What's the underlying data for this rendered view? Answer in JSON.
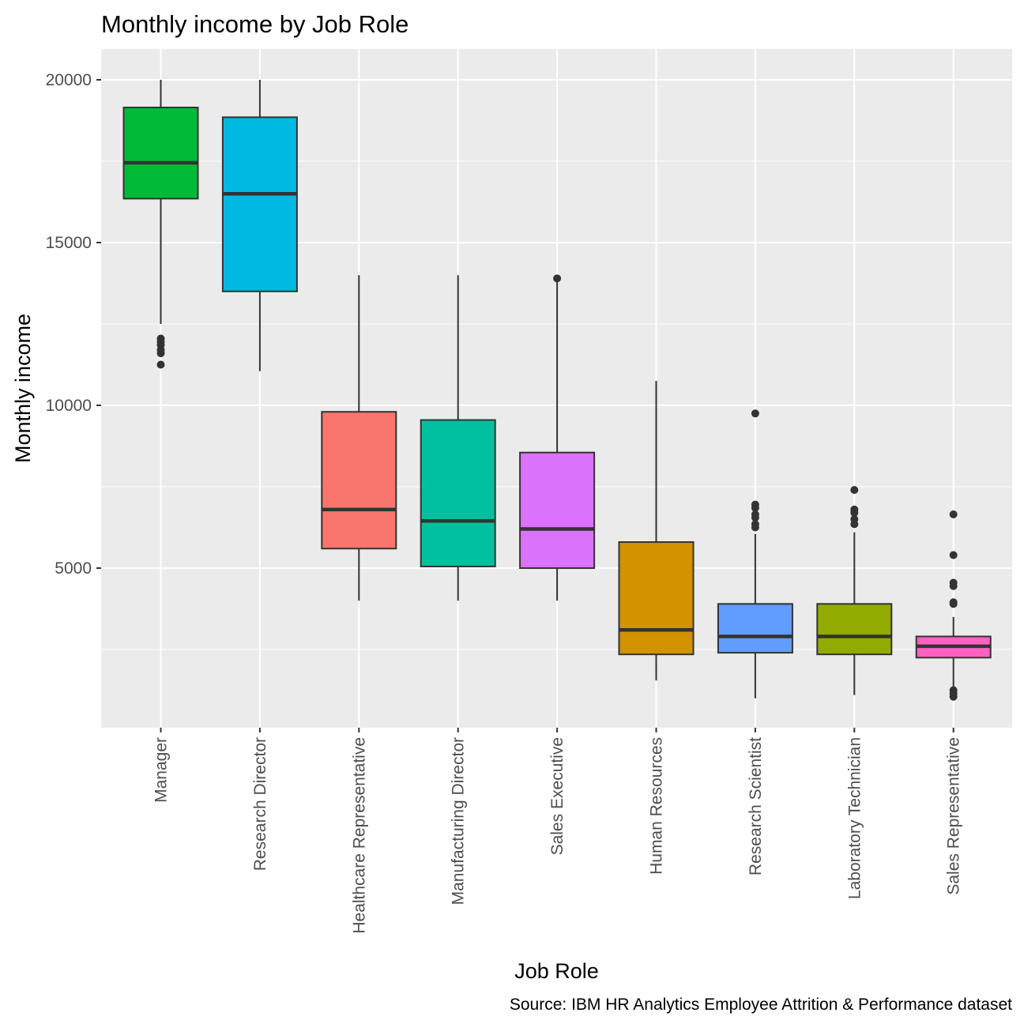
{
  "chart_data": {
    "type": "boxplot",
    "title": "Monthly income by Job Role",
    "xlabel": "Job Role",
    "ylabel": "Monthly income",
    "caption": "Source: IBM HR Analytics Employee Attrition & Performance dataset",
    "ylim": [
      0,
      21000
    ],
    "yticks": [
      5000,
      10000,
      15000,
      20000
    ],
    "grid": true,
    "legend": "none",
    "categories": [
      "Manager",
      "Research Director",
      "Healthcare Representative",
      "Manufacturing Director",
      "Sales Executive",
      "Human Resources",
      "Research Scientist",
      "Laboratory Technician",
      "Sales Representative"
    ],
    "boxes": [
      {
        "category": "Manager",
        "color": "#00BA38",
        "whisker_low": 12500,
        "q1": 16350,
        "median": 17450,
        "q3": 19150,
        "whisker_high": 20000,
        "outliers": [
          11250,
          11600,
          11700,
          11850,
          11950,
          12050
        ]
      },
      {
        "category": "Research Director",
        "color": "#00B9E3",
        "whisker_low": 11050,
        "q1": 13500,
        "median": 16500,
        "q3": 18850,
        "whisker_high": 20000,
        "outliers": []
      },
      {
        "category": "Healthcare Representative",
        "color": "#F8766D",
        "whisker_low": 4000,
        "q1": 5600,
        "median": 6800,
        "q3": 9800,
        "whisker_high": 14000,
        "outliers": []
      },
      {
        "category": "Manufacturing Director",
        "color": "#00C19F",
        "whisker_low": 4000,
        "q1": 5050,
        "median": 6450,
        "q3": 9550,
        "whisker_high": 14000,
        "outliers": []
      },
      {
        "category": "Sales Executive",
        "color": "#DB72FB",
        "whisker_low": 4000,
        "q1": 5000,
        "median": 6200,
        "q3": 8550,
        "whisker_high": 13900,
        "outliers": [
          13900
        ]
      },
      {
        "category": "Human Resources",
        "color": "#D39200",
        "whisker_low": 1550,
        "q1": 2350,
        "median": 3100,
        "q3": 5800,
        "whisker_high": 10750,
        "outliers": []
      },
      {
        "category": "Research Scientist",
        "color": "#619CFF",
        "whisker_low": 1000,
        "q1": 2400,
        "median": 2900,
        "q3": 3900,
        "whisker_high": 6050,
        "outliers": [
          6250,
          6350,
          6550,
          6650,
          6850,
          6950,
          9750
        ]
      },
      {
        "category": "Laboratory Technician",
        "color": "#93AA00",
        "whisker_low": 1100,
        "q1": 2350,
        "median": 2900,
        "q3": 3900,
        "whisker_high": 6100,
        "outliers": [
          6350,
          6500,
          6700,
          6800,
          7400
        ]
      },
      {
        "category": "Sales Representative",
        "color": "#FF61C3",
        "whisker_low": 1350,
        "q1": 2250,
        "median": 2600,
        "q3": 2900,
        "whisker_high": 3500,
        "outliers": [
          1050,
          1150,
          1250,
          3900,
          3950,
          4450,
          4550,
          5400,
          6650
        ]
      }
    ]
  }
}
